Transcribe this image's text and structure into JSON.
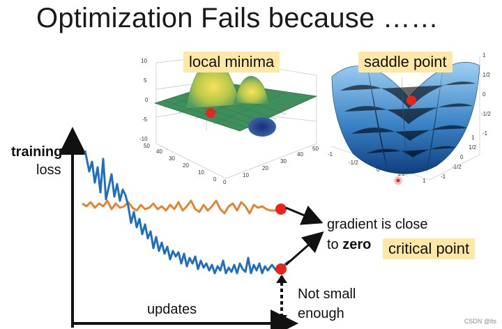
{
  "title": "Optimization Fails because ……",
  "tags": {
    "local_minima": "local minima",
    "saddle_point": "saddle point",
    "critical_point": "critical point"
  },
  "labels": {
    "ylabel_bold": "training",
    "ylabel_rest": "loss",
    "xlabel": "updates",
    "gradient_line1": "gradient is close",
    "gradient_line2_prefix": "to ",
    "gradient_line2_bold": "zero",
    "not_small_1": "Not small",
    "not_small_2": "enough"
  },
  "local_minima_plot": {
    "z_ticks": [
      "10",
      "5",
      "0",
      "-5",
      "-10"
    ],
    "y_ticks": [
      "50",
      "40",
      "30",
      "20",
      "10",
      "0"
    ],
    "x_ticks": [
      "0",
      "10",
      "20",
      "30",
      "40",
      "50"
    ]
  },
  "saddle_plot": {
    "right_ticks": [
      "1",
      "1/2",
      "0",
      "-1/2",
      "-1"
    ],
    "bottom_x_ticks": [
      "-1",
      "-1/2",
      "0",
      "1/2",
      "1"
    ],
    "bottom_y_ticks": [
      "1",
      "1/2",
      "0",
      "-1/2",
      "-1"
    ]
  },
  "watermark": "CSDN @lts",
  "colors": {
    "blue_curve": "#1f6fc0",
    "orange_curve": "#e8822a",
    "marker": "#e8241c",
    "tag_bg": "#ffe7a6"
  }
}
